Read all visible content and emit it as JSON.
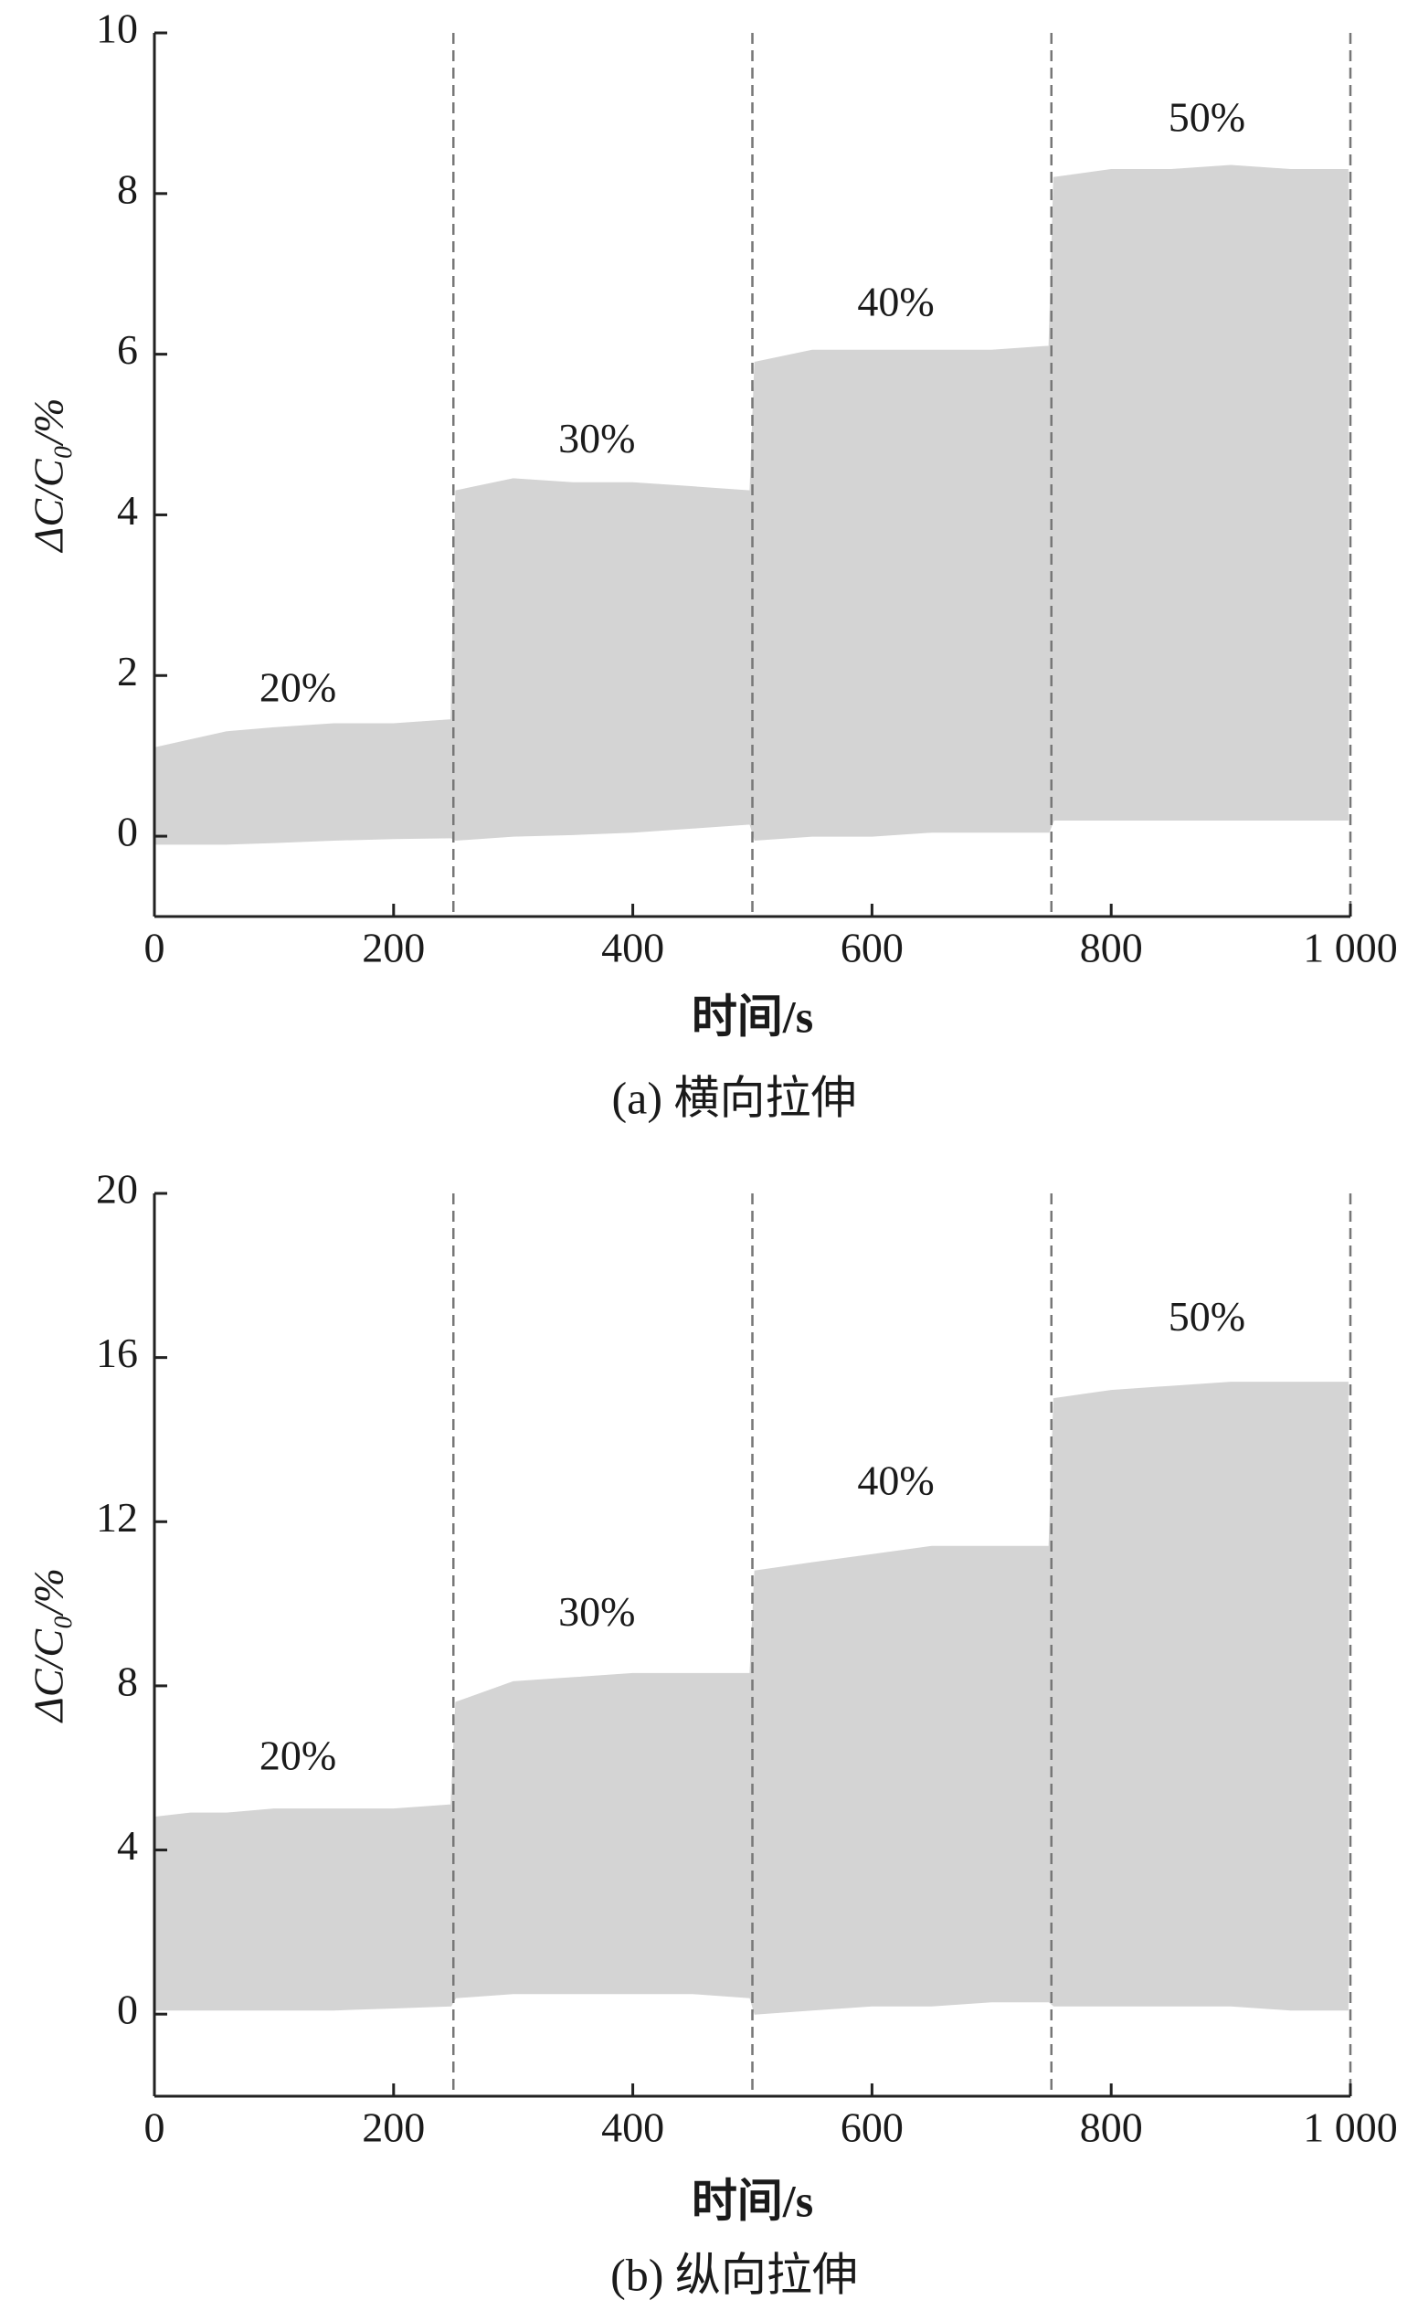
{
  "chart_data": [
    {
      "type": "range",
      "caption": "(a) 横向拉伸",
      "x_label": "时间/s",
      "y_label": "ΔC/C₀/%",
      "x": [
        0,
        30,
        60,
        100,
        150,
        200,
        248,
        252,
        300,
        350,
        400,
        450,
        498,
        502,
        550,
        600,
        650,
        700,
        748,
        752,
        800,
        850,
        900,
        950,
        998
      ],
      "series": [
        {
          "color": "#d4d4d4",
          "values": [
            1.1,
            1.2,
            1.3,
            1.35,
            1.4,
            1.4,
            1.45,
            4.3,
            4.45,
            4.4,
            4.4,
            4.35,
            4.3,
            5.9,
            6.05,
            6.05,
            6.05,
            6.05,
            6.1,
            8.2,
            8.3,
            8.3,
            8.35,
            8.3,
            8.3
          ]
        },
        {
          "color": "#d4d4d4",
          "values": [
            -0.1,
            -0.1,
            -0.1,
            -0.08,
            -0.05,
            -0.03,
            -0.02,
            -0.05,
            0,
            0.02,
            0.05,
            0.1,
            0.15,
            -0.05,
            0,
            0,
            0.05,
            0.05,
            0.05,
            0.2,
            0.2,
            0.2,
            0.2,
            0.2,
            0.2
          ]
        }
      ],
      "dividers": [
        250,
        500,
        750,
        1000
      ],
      "annotations": [
        {
          "text": "20%",
          "x": 120,
          "y": 1.8
        },
        {
          "text": "30%",
          "x": 370,
          "y": 4.9
        },
        {
          "text": "40%",
          "x": 620,
          "y": 6.6
        },
        {
          "text": "50%",
          "x": 880,
          "y": 8.9
        }
      ],
      "xlim": [
        0,
        1000
      ],
      "xticks": [
        0,
        200,
        400,
        600,
        800,
        {
          "value": 1000,
          "label": "1 000"
        }
      ],
      "ylim": [
        -1,
        10
      ],
      "yticks": [
        0,
        2,
        4,
        6,
        8,
        10
      ]
    },
    {
      "type": "range",
      "caption": "(b) 纵向拉伸",
      "x_label": "时间/s",
      "y_label": "ΔC/C₀/%",
      "x": [
        0,
        30,
        60,
        100,
        150,
        200,
        248,
        252,
        300,
        350,
        400,
        450,
        498,
        502,
        550,
        600,
        650,
        700,
        748,
        752,
        800,
        850,
        900,
        950,
        998
      ],
      "series": [
        {
          "color": "#d4d4d4",
          "values": [
            4.8,
            4.9,
            4.9,
            5.0,
            5.0,
            5.0,
            5.1,
            7.6,
            8.1,
            8.2,
            8.3,
            8.3,
            8.3,
            10.8,
            11.0,
            11.2,
            11.4,
            11.4,
            11.4,
            15.0,
            15.2,
            15.3,
            15.4,
            15.4,
            15.4
          ]
        },
        {
          "color": "#d4d4d4",
          "values": [
            0.1,
            0.1,
            0.1,
            0.1,
            0.1,
            0.15,
            0.2,
            0.4,
            0.5,
            0.5,
            0.5,
            0.5,
            0.4,
            0.0,
            0.1,
            0.2,
            0.2,
            0.3,
            0.3,
            0.2,
            0.2,
            0.2,
            0.2,
            0.1,
            0.1
          ]
        }
      ],
      "dividers": [
        250,
        500,
        750,
        1000
      ],
      "annotations": [
        {
          "text": "20%",
          "x": 120,
          "y": 6.2
        },
        {
          "text": "30%",
          "x": 370,
          "y": 9.7
        },
        {
          "text": "40%",
          "x": 620,
          "y": 12.9
        },
        {
          "text": "50%",
          "x": 880,
          "y": 16.9
        }
      ],
      "xlim": [
        0,
        1000
      ],
      "xticks": [
        0,
        200,
        400,
        600,
        800,
        {
          "value": 1000,
          "label": "1 000"
        }
      ],
      "ylim": [
        -2,
        20
      ],
      "yticks": [
        0,
        4,
        8,
        12,
        16,
        20
      ]
    }
  ]
}
